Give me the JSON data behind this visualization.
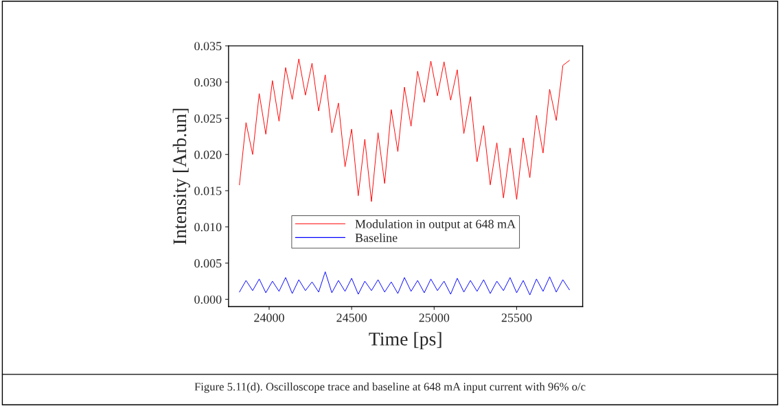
{
  "chart_data": {
    "type": "line",
    "xlabel": "Time [ps]",
    "ylabel": "Intensity [Arb.un]",
    "annotations": [
      "Figure 5.11(d). Oscilloscope trace and baseline at 648 mA input current with 96% o/c"
    ],
    "x": [
      23820,
      23860,
      23900,
      23940,
      23980,
      24020,
      24060,
      24100,
      24140,
      24180,
      24220,
      24260,
      24300,
      24340,
      24380,
      24420,
      24460,
      24500,
      24540,
      24580,
      24620,
      24660,
      24700,
      24740,
      24780,
      24820,
      24860,
      24900,
      24940,
      24980,
      25020,
      25060,
      25100,
      25140,
      25180,
      25220,
      25260,
      25300,
      25340,
      25380,
      25420,
      25460,
      25500,
      25540,
      25580,
      25620,
      25660,
      25700,
      25740,
      25780,
      25820
    ],
    "series": [
      {
        "name": "Modulation in output at 648 mA",
        "color": "#ff0000",
        "values": [
          0.0158,
          0.0244,
          0.02,
          0.0284,
          0.0228,
          0.0302,
          0.0246,
          0.032,
          0.0276,
          0.0332,
          0.0282,
          0.0326,
          0.026,
          0.031,
          0.023,
          0.0271,
          0.0183,
          0.0235,
          0.0143,
          0.0221,
          0.0135,
          0.023,
          0.016,
          0.0262,
          0.0204,
          0.0293,
          0.0239,
          0.0315,
          0.0272,
          0.0329,
          0.0281,
          0.0328,
          0.0275,
          0.0317,
          0.0229,
          0.028,
          0.019,
          0.024,
          0.0158,
          0.0216,
          0.014,
          0.0209,
          0.0138,
          0.0223,
          0.0168,
          0.0254,
          0.0202,
          0.029,
          0.0247,
          0.0323,
          0.033
        ]
      },
      {
        "name": "Baseline",
        "color": "#0000ff",
        "values": [
          0.001,
          0.0026,
          0.0012,
          0.0028,
          0.0009,
          0.0025,
          0.0011,
          0.003,
          0.0008,
          0.0027,
          0.0012,
          0.0024,
          0.001,
          0.0038,
          0.0009,
          0.0026,
          0.0011,
          0.0029,
          0.0007,
          0.0025,
          0.0012,
          0.0027,
          0.001,
          0.0024,
          0.0008,
          0.003,
          0.0011,
          0.0026,
          0.0009,
          0.0028,
          0.0012,
          0.0025,
          0.0007,
          0.0029,
          0.001,
          0.0026,
          0.0011,
          0.0027,
          0.0008,
          0.0025,
          0.0012,
          0.003,
          0.0009,
          0.0026,
          0.0006,
          0.0028,
          0.0011,
          0.0031,
          0.001,
          0.0027,
          0.0013
        ]
      }
    ],
    "xlim": [
      23754,
      25900
    ],
    "xticks": [
      24000,
      24500,
      25000,
      25500
    ],
    "ylim": [
      -0.001,
      0.035
    ],
    "yticks": [
      {
        "value": 0,
        "label": "0.000"
      },
      {
        "value": 0.005,
        "label": "0.005"
      },
      {
        "value": 0.01,
        "label": "0.010"
      },
      {
        "value": 0.015,
        "label": "0.015"
      },
      {
        "value": 0.02,
        "label": "0.020"
      },
      {
        "value": 0.025,
        "label": "0.025"
      },
      {
        "value": 0.03,
        "label": "0.030"
      },
      {
        "value": 0.035,
        "label": "0.035"
      }
    ],
    "grid": false,
    "legend": "bottom",
    "marker": "none",
    "line_style": "solid"
  }
}
